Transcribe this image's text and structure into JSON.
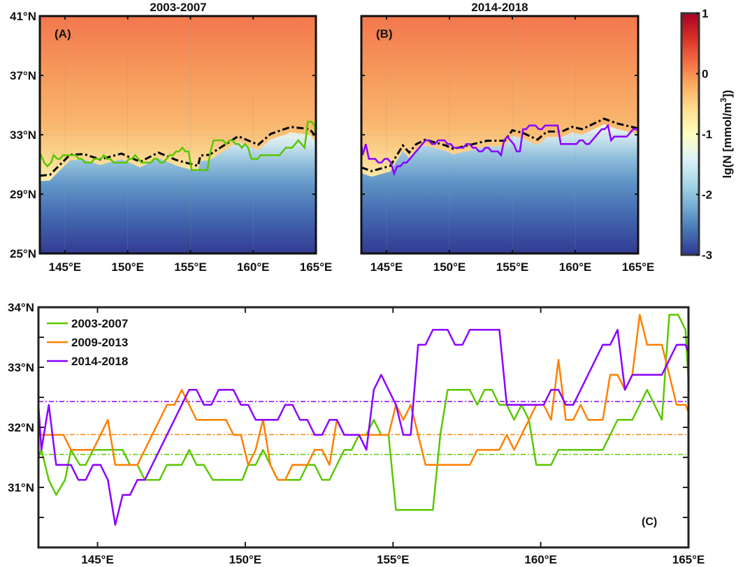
{
  "chart_data": [
    {
      "type": "heatmap",
      "panel_label": "(A)",
      "title": "2003-2007",
      "xlim": [
        143,
        165
      ],
      "ylim": [
        25,
        41
      ],
      "x_ticks": [
        145,
        150,
        155,
        160,
        165
      ],
      "x_tick_labels": [
        "145°E",
        "150°E",
        "155°E",
        "160°E",
        "165°E"
      ],
      "y_ticks": [
        41,
        37,
        33,
        29,
        25
      ],
      "y_tick_labels": [
        "41°N",
        "37°N",
        "33°N",
        "29°N",
        "25°N"
      ],
      "grid": true,
      "overlay_series": "2003-2007",
      "overlay_color": "#5ac700",
      "contour_line": [
        [
          143,
          30.24
        ],
        [
          143.8,
          30.3
        ],
        [
          145.4,
          31.65
        ],
        [
          146.5,
          31.7
        ],
        [
          147.8,
          31.34
        ],
        [
          149.5,
          31.73
        ],
        [
          151.0,
          31.18
        ],
        [
          152.45,
          31.8
        ],
        [
          153.9,
          31.29
        ],
        [
          155.6,
          30.9
        ],
        [
          155.8,
          31.6
        ],
        [
          156.5,
          31.65
        ],
        [
          158.8,
          32.9
        ],
        [
          160.4,
          32.33
        ],
        [
          161.4,
          33.06
        ],
        [
          163.0,
          33.53
        ],
        [
          164.5,
          33.38
        ],
        [
          164.9,
          32.98
        ]
      ]
    },
    {
      "type": "heatmap",
      "panel_label": "(B)",
      "title": "2014-2018",
      "xlim": [
        143,
        165
      ],
      "ylim": [
        25,
        41
      ],
      "x_ticks": [
        145,
        150,
        155,
        160,
        165
      ],
      "x_tick_labels": [
        "145°E",
        "150°E",
        "155°E",
        "160°E",
        "165°E"
      ],
      "y_ticks": [
        41,
        37,
        33,
        29,
        25
      ],
      "grid": true,
      "overlay_series": "2014-2018",
      "overlay_color": "#8b00ff",
      "contour_line": [
        [
          143,
          30.8
        ],
        [
          143.8,
          30.55
        ],
        [
          145.3,
          30.9
        ],
        [
          146.3,
          32.28
        ],
        [
          146.8,
          31.8
        ],
        [
          147.35,
          32.36
        ],
        [
          148.1,
          32.67
        ],
        [
          149.7,
          32.28
        ],
        [
          150.3,
          32.05
        ],
        [
          151.45,
          32.28
        ],
        [
          153.0,
          32.6
        ],
        [
          154.4,
          32.6
        ],
        [
          155.0,
          33.3
        ],
        [
          155.8,
          33.14
        ],
        [
          157.0,
          32.67
        ],
        [
          157.75,
          33.22
        ],
        [
          158.95,
          33.22
        ],
        [
          159.75,
          33.53
        ],
        [
          160.55,
          33.38
        ],
        [
          162.3,
          34.08
        ],
        [
          163.3,
          33.77
        ],
        [
          164.85,
          33.46
        ],
        [
          165,
          33.4
        ]
      ],
      "colorbar": {
        "label_prefix": "lg(N [mmol/m",
        "label_sup": "3",
        "label_suffix": "])",
        "range": [
          -3,
          1
        ],
        "ticks": [
          1,
          0,
          -1,
          -2,
          -3
        ],
        "tick_labels": [
          "1",
          "0",
          "-1",
          "-2",
          "-3"
        ],
        "colormap": [
          "#313695",
          "#4575b4",
          "#74add1",
          "#abd9e9",
          "#e0f3f8",
          "#ffffbf",
          "#fee090",
          "#fdae61",
          "#f46d43",
          "#d73027",
          "#a50026"
        ]
      }
    },
    {
      "type": "line",
      "panel_label": "(C)",
      "xlim": [
        143,
        165
      ],
      "ylim": [
        30,
        34
      ],
      "x_ticks": [
        145,
        150,
        155,
        160,
        165
      ],
      "x_tick_labels": [
        "145°E",
        "150°E",
        "155°E",
        "160°E",
        "165°E"
      ],
      "y_ticks": [
        34,
        33,
        32,
        31
      ],
      "y_tick_labels": [
        "34°N",
        "33°N",
        "32°N",
        "31°N"
      ],
      "legend_position": "top-left",
      "series": [
        {
          "name": "2003-2007",
          "color": "#5ac700",
          "mean": 31.55,
          "points": [
            [
              143,
              31.5
            ],
            [
              143.1,
              31.625
            ],
            [
              143.35,
              31.125
            ],
            [
              143.6,
              30.875
            ],
            [
              143.9,
              31.125
            ],
            [
              144.1,
              31.625
            ],
            [
              144.4,
              31.375
            ],
            [
              144.6,
              31.375
            ],
            [
              144.85,
              31.625
            ],
            [
              145.85,
              31.625
            ],
            [
              146.1,
              31.375
            ],
            [
              146.35,
              31.375
            ],
            [
              146.6,
              31.125
            ],
            [
              147.1,
              31.125
            ],
            [
              147.35,
              31.375
            ],
            [
              147.85,
              31.375
            ],
            [
              148.1,
              31.625
            ],
            [
              148.35,
              31.375
            ],
            [
              148.6,
              31.375
            ],
            [
              148.9,
              31.125
            ],
            [
              149.9,
              31.125
            ],
            [
              150.1,
              31.375
            ],
            [
              150.35,
              31.375
            ],
            [
              150.6,
              31.625
            ],
            [
              150.85,
              31.375
            ],
            [
              151.1,
              31.125
            ],
            [
              151.85,
              31.125
            ],
            [
              152.1,
              31.375
            ],
            [
              152.35,
              31.375
            ],
            [
              152.6,
              31.125
            ],
            [
              152.85,
              31.125
            ],
            [
              153.35,
              31.625
            ],
            [
              153.6,
              31.625
            ],
            [
              153.85,
              31.875
            ],
            [
              154.1,
              31.875
            ],
            [
              154.35,
              32.125
            ],
            [
              154.6,
              31.875
            ],
            [
              154.85,
              31.875
            ],
            [
              155.1,
              30.625
            ],
            [
              156.35,
              30.625
            ],
            [
              156.6,
              31.875
            ],
            [
              156.85,
              32.625
            ],
            [
              157.6,
              32.625
            ],
            [
              157.85,
              32.375
            ],
            [
              158.1,
              32.625
            ],
            [
              158.35,
              32.625
            ],
            [
              158.6,
              32.375
            ],
            [
              158.85,
              32.375
            ],
            [
              159.1,
              32.125
            ],
            [
              159.35,
              32.375
            ],
            [
              159.6,
              32.125
            ],
            [
              159.85,
              31.375
            ],
            [
              160.35,
              31.375
            ],
            [
              160.6,
              31.625
            ],
            [
              162.1,
              31.625
            ],
            [
              162.6,
              32.125
            ],
            [
              163.1,
              32.125
            ],
            [
              163.6,
              32.625
            ],
            [
              164.1,
              32.125
            ],
            [
              164.35,
              33.875
            ],
            [
              164.65,
              33.875
            ],
            [
              164.9,
              33.625
            ],
            [
              165,
              32.75
            ]
          ]
        },
        {
          "name": "2009-2013",
          "color": "#ff8000",
          "mean": 31.88,
          "points": [
            [
              143,
              31.875
            ],
            [
              143.85,
              31.875
            ],
            [
              144.1,
              31.625
            ],
            [
              144.85,
              31.625
            ],
            [
              145.35,
              32.125
            ],
            [
              145.6,
              31.375
            ],
            [
              146.35,
              31.375
            ],
            [
              147.35,
              32.375
            ],
            [
              147.6,
              32.375
            ],
            [
              147.85,
              32.625
            ],
            [
              148.35,
              32.125
            ],
            [
              149.35,
              32.125
            ],
            [
              149.6,
              31.875
            ],
            [
              149.85,
              31.875
            ],
            [
              150.1,
              31.375
            ],
            [
              150.35,
              31.625
            ],
            [
              150.6,
              32.125
            ],
            [
              150.85,
              31.375
            ],
            [
              151.1,
              31.125
            ],
            [
              151.35,
              31.125
            ],
            [
              151.6,
              31.375
            ],
            [
              152.1,
              31.375
            ],
            [
              152.35,
              31.625
            ],
            [
              152.6,
              31.625
            ],
            [
              152.85,
              31.375
            ],
            [
              153.1,
              32.125
            ],
            [
              153.35,
              31.875
            ],
            [
              154.85,
              31.875
            ],
            [
              155.1,
              32.375
            ],
            [
              155.35,
              32.125
            ],
            [
              155.6,
              32.375
            ],
            [
              156.1,
              31.375
            ],
            [
              157.6,
              31.375
            ],
            [
              157.85,
              31.625
            ],
            [
              158.6,
              31.625
            ],
            [
              158.85,
              31.875
            ],
            [
              159.1,
              31.625
            ],
            [
              159.85,
              32.375
            ],
            [
              160.1,
              32.375
            ],
            [
              160.35,
              32.125
            ],
            [
              160.6,
              33.125
            ],
            [
              160.85,
              32.125
            ],
            [
              161.1,
              32.125
            ],
            [
              161.35,
              32.375
            ],
            [
              161.6,
              32.125
            ],
            [
              162.1,
              32.125
            ],
            [
              162.35,
              32.875
            ],
            [
              162.6,
              32.875
            ],
            [
              162.85,
              32.625
            ],
            [
              163.1,
              32.875
            ],
            [
              163.35,
              33.875
            ],
            [
              163.6,
              33.375
            ],
            [
              164.1,
              33.375
            ],
            [
              164.6,
              32.375
            ],
            [
              164.9,
              32.375
            ],
            [
              165,
              32.25
            ]
          ]
        },
        {
          "name": "2014-2018",
          "color": "#8b00ff",
          "mean": 32.43,
          "points": [
            [
              143,
              32.375
            ],
            [
              143.1,
              31.625
            ],
            [
              143.35,
              32.375
            ],
            [
              143.6,
              31.375
            ],
            [
              144.1,
              31.375
            ],
            [
              144.35,
              31.125
            ],
            [
              144.6,
              31.125
            ],
            [
              144.85,
              31.375
            ],
            [
              145.1,
              31.375
            ],
            [
              145.35,
              31.125
            ],
            [
              145.6,
              30.375
            ],
            [
              145.85,
              30.875
            ],
            [
              146.1,
              30.875
            ],
            [
              146.35,
              31.125
            ],
            [
              146.6,
              31.125
            ],
            [
              148.1,
              32.625
            ],
            [
              148.35,
              32.625
            ],
            [
              148.6,
              32.375
            ],
            [
              148.85,
              32.375
            ],
            [
              149.1,
              32.625
            ],
            [
              149.6,
              32.625
            ],
            [
              149.85,
              32.375
            ],
            [
              150.1,
              32.375
            ],
            [
              150.35,
              32.125
            ],
            [
              151.1,
              32.125
            ],
            [
              151.35,
              32.375
            ],
            [
              151.6,
              32.375
            ],
            [
              151.85,
              32.125
            ],
            [
              152.1,
              32.125
            ],
            [
              152.35,
              31.875
            ],
            [
              152.6,
              31.875
            ],
            [
              152.85,
              32.125
            ],
            [
              153.1,
              32.125
            ],
            [
              153.35,
              31.875
            ],
            [
              153.85,
              31.875
            ],
            [
              154.1,
              31.625
            ],
            [
              154.35,
              32.625
            ],
            [
              154.6,
              32.875
            ],
            [
              155.1,
              32.375
            ],
            [
              155.35,
              31.875
            ],
            [
              155.6,
              31.875
            ],
            [
              155.85,
              33.375
            ],
            [
              156.1,
              33.375
            ],
            [
              156.35,
              33.625
            ],
            [
              156.85,
              33.625
            ],
            [
              157.1,
              33.375
            ],
            [
              157.35,
              33.375
            ],
            [
              157.6,
              33.625
            ],
            [
              158.6,
              33.625
            ],
            [
              158.85,
              32.375
            ],
            [
              160.1,
              32.375
            ],
            [
              160.35,
              32.625
            ],
            [
              160.6,
              32.625
            ],
            [
              160.85,
              32.375
            ],
            [
              161.1,
              32.375
            ],
            [
              162.1,
              33.375
            ],
            [
              162.35,
              33.375
            ],
            [
              162.6,
              33.625
            ],
            [
              162.85,
              32.625
            ],
            [
              163.1,
              32.875
            ],
            [
              164.1,
              32.875
            ],
            [
              164.6,
              33.375
            ],
            [
              164.9,
              33.375
            ],
            [
              165,
              33.25
            ]
          ]
        }
      ]
    }
  ]
}
